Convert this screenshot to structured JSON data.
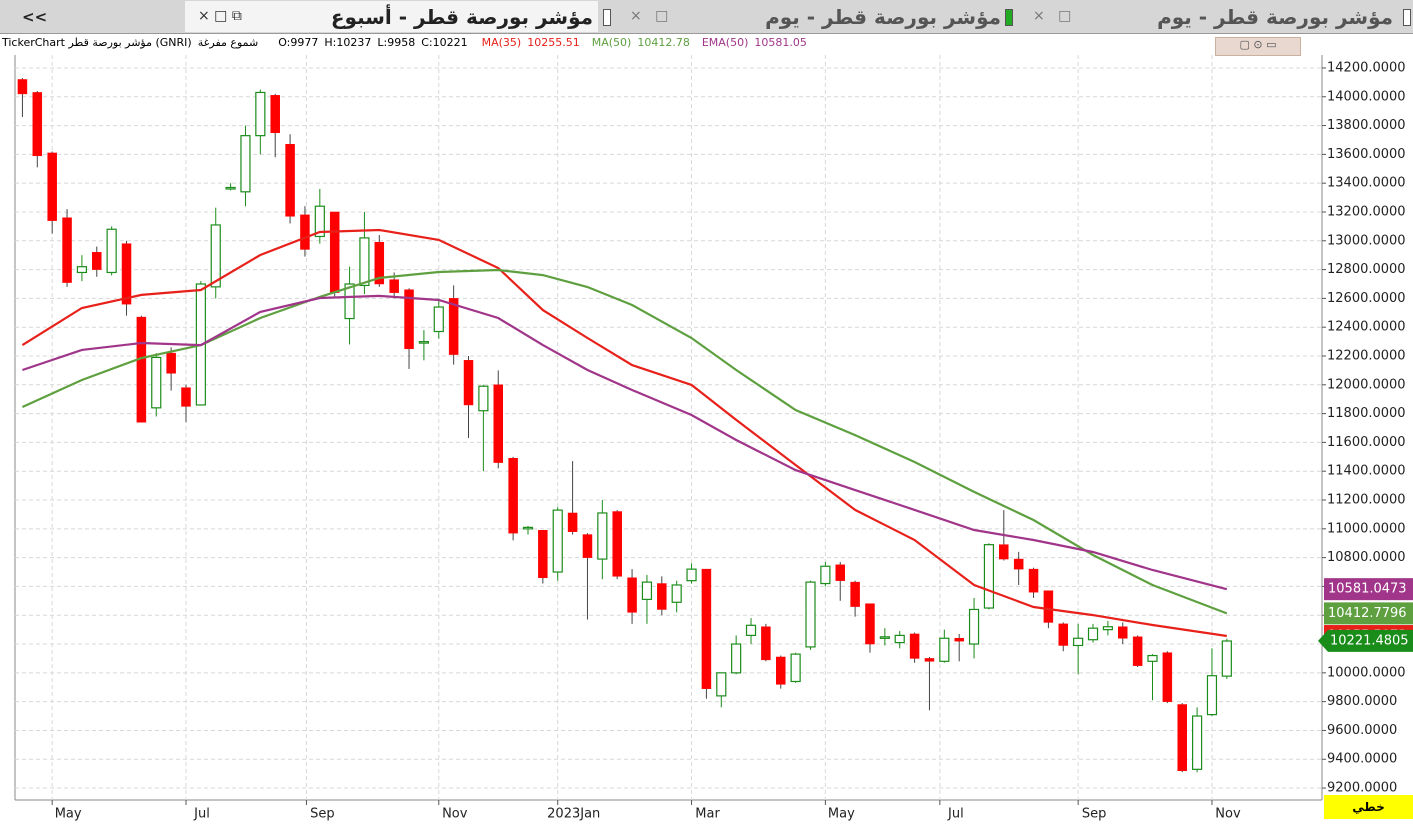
{
  "nav_button": "<<",
  "tabs": [
    "مؤشر بورصة قطر - أسبوع",
    "مؤشر بورصة قطر - يوم",
    "مؤشر بورصة قطر - يوم"
  ],
  "info_bar": {
    "source": "TickerChart مؤشر بورصة قطر (GNRI)",
    "style": "شموع مفرغة",
    "ohlc_labels": [
      "O:",
      "H:",
      "L:",
      "C:"
    ]
  },
  "chart_type_button": "خطي",
  "chart_data": {
    "type": "candlestick",
    "xlim": [
      -0.5,
      87.4
    ],
    "ylim": [
      9117,
      14290
    ],
    "grid": true,
    "up_color": "#1a8c1a",
    "down_color": "#ff0000",
    "xticks": [
      {
        "value": 2,
        "label": "May"
      },
      {
        "value": 11,
        "label": "Jul"
      },
      {
        "value": 19.1,
        "label": "Sep"
      },
      {
        "value": 28,
        "label": "Nov"
      },
      {
        "value": 36,
        "label": "2023Jan"
      },
      {
        "value": 45,
        "label": "Mar"
      },
      {
        "value": 54,
        "label": "May"
      },
      {
        "value": 61.7,
        "label": "Jul"
      },
      {
        "value": 71,
        "label": "Sep"
      },
      {
        "value": 80,
        "label": "Nov"
      }
    ],
    "yticks": [
      {
        "value": 9200,
        "label": "9200.0000"
      },
      {
        "value": 9400,
        "label": "9400.0000"
      },
      {
        "value": 9600,
        "label": "9600.0000"
      },
      {
        "value": 9800,
        "label": "9800.0000"
      },
      {
        "value": 10000,
        "label": "10000.0000"
      },
      {
        "value": 10200,
        "label": "10200.0000"
      },
      {
        "value": 10400,
        "label": "10400.0000"
      },
      {
        "value": 10600,
        "label": "10600.0000"
      },
      {
        "value": 10800,
        "label": "10800.0000"
      },
      {
        "value": 11000,
        "label": "11000.0000"
      },
      {
        "value": 11200,
        "label": "11200.0000"
      },
      {
        "value": 11400,
        "label": "11400.0000"
      },
      {
        "value": 11600,
        "label": "11600.0000"
      },
      {
        "value": 11800,
        "label": "11800.0000"
      },
      {
        "value": 12000,
        "label": "12000.0000"
      },
      {
        "value": 12200,
        "label": "12200.0000"
      },
      {
        "value": 12400,
        "label": "12400.0000"
      },
      {
        "value": 12600,
        "label": "12600.0000"
      },
      {
        "value": 12800,
        "label": "12800.0000"
      },
      {
        "value": 13000,
        "label": "13000.0000"
      },
      {
        "value": 13200,
        "label": "13200.0000"
      },
      {
        "value": 13400,
        "label": "13400.0000"
      },
      {
        "value": 13600,
        "label": "13600.0000"
      },
      {
        "value": 13800,
        "label": "13800.0000"
      },
      {
        "value": 14000,
        "label": "14000.0000"
      },
      {
        "value": 14200,
        "label": "14200.0000"
      }
    ],
    "open": [
      14120,
      14030,
      13610,
      13160,
      12780,
      12920,
      12780,
      12980,
      12470,
      11840,
      12220,
      11980,
      11860,
      12680,
      13360,
      13340,
      13730,
      14010,
      13670,
      13180,
      13030,
      13200,
      12460,
      12690,
      12990,
      12730,
      12660,
      12290,
      12370,
      12600,
      12170,
      11820,
      12000,
      11490,
      11000,
      10990,
      10700,
      11110,
      10960,
      10790,
      11120,
      10660,
      10510,
      10620,
      10490,
      10640,
      10720,
      9840,
      10000,
      10260,
      10320,
      10110,
      9940,
      10180,
      10620,
      10750,
      10630,
      10480,
      10240,
      10210,
      10270,
      10100,
      10080,
      10240,
      10200,
      10450,
      10890,
      10790,
      10720,
      10570,
      10340,
      10190,
      10230,
      10300,
      10320,
      10250,
      10080,
      10140,
      9780,
      9330,
      9710,
      9977
    ],
    "high": [
      14130,
      14040,
      13620,
      13220,
      12900,
      12960,
      13100,
      13000,
      12480,
      12220,
      12260,
      12000,
      12720,
      13230,
      13400,
      13800,
      14050,
      14020,
      13740,
      13240,
      13360,
      13200,
      12820,
      13200,
      13040,
      12780,
      12670,
      12380,
      12600,
      12690,
      12200,
      12000,
      12100,
      11500,
      11020,
      10990,
      11150,
      11470,
      10970,
      11200,
      11130,
      10720,
      10680,
      10670,
      10640,
      10760,
      10720,
      10000,
      10260,
      10380,
      10340,
      10120,
      10140,
      10640,
      10770,
      10770,
      10640,
      10480,
      10310,
      10290,
      10280,
      10110,
      10300,
      10270,
      10520,
      10900,
      11130,
      10840,
      10730,
      10570,
      10350,
      10340,
      10340,
      10360,
      10350,
      10260,
      10130,
      10150,
      9790,
      9760,
      10170,
      10237
    ],
    "low": [
      13860,
      13510,
      13050,
      12680,
      12720,
      12750,
      12760,
      12480,
      11740,
      11780,
      11960,
      11740,
      11860,
      12600,
      13350,
      13240,
      13600,
      13580,
      13120,
      12890,
      12980,
      12600,
      12280,
      12630,
      12680,
      12600,
      12110,
      12170,
      12320,
      12140,
      11630,
      11400,
      11420,
      10920,
      10960,
      10620,
      10640,
      10960,
      10370,
      10650,
      10650,
      10340,
      10340,
      10400,
      10420,
      10620,
      9820,
      9760,
      9990,
      10200,
      10080,
      9890,
      9930,
      10160,
      10600,
      10500,
      10390,
      10140,
      10190,
      10170,
      10070,
      9740,
      10070,
      10080,
      10100,
      10440,
      10780,
      10610,
      10520,
      10310,
      10150,
      9990,
      10210,
      10260,
      10200,
      10040,
      9810,
      9790,
      9310,
      9310,
      9700,
      9958
    ],
    "close": [
      14020,
      13590,
      13140,
      12710,
      12820,
      12800,
      13080,
      12560,
      11740,
      12190,
      12080,
      11850,
      12700,
      13110,
      13370,
      13730,
      14030,
      13750,
      13170,
      12940,
      13240,
      12640,
      12700,
      13020,
      12700,
      12640,
      12250,
      12300,
      12540,
      12210,
      11860,
      11990,
      11460,
      10970,
      11010,
      10660,
      11130,
      10980,
      10800,
      11110,
      10670,
      10420,
      10630,
      10440,
      10610,
      10720,
      9890,
      10000,
      10200,
      10330,
      10090,
      9920,
      10130,
      10630,
      10740,
      10640,
      10460,
      10200,
      10250,
      10260,
      10100,
      10080,
      10240,
      10220,
      10440,
      10890,
      10790,
      10720,
      10560,
      10350,
      10190,
      10240,
      10310,
      10320,
      10240,
      10050,
      10120,
      9800,
      9320,
      9700,
      9980,
      10221
    ],
    "last_price_tag": 10221.4805,
    "series": [
      {
        "name": "MA(35)",
        "color": "#e8201a",
        "tag": 10255.5073,
        "x": [
          0,
          4,
          8,
          12,
          16,
          20,
          24,
          28,
          32,
          35,
          38,
          41,
          45,
          48,
          52,
          56,
          60,
          64,
          68,
          72,
          76,
          81
        ],
        "values": [
          12276,
          12533,
          12624,
          12658,
          12901,
          13061,
          13075,
          13006,
          12811,
          12519,
          12325,
          12137,
          11999,
          11756,
          11443,
          11131,
          10922,
          10610,
          10457,
          10401,
          10332,
          10255.51
        ]
      },
      {
        "name": "MA(50)",
        "color": "#5ea040",
        "tag": 10412.7796,
        "x": [
          0,
          4,
          8,
          12,
          16,
          20,
          24,
          28,
          32,
          35,
          38,
          41,
          45,
          48,
          52,
          56,
          60,
          64,
          68,
          72,
          76,
          81
        ],
        "values": [
          11846,
          12033,
          12186,
          12276,
          12464,
          12610,
          12742,
          12783,
          12797,
          12762,
          12679,
          12554,
          12325,
          12103,
          11825,
          11651,
          11464,
          11256,
          11061,
          10818,
          10610,
          10412.78
        ]
      },
      {
        "name": "EMA(50)",
        "color": "#a0358a",
        "tag": 10581.0473,
        "x": [
          0,
          4,
          8,
          12,
          16,
          20,
          24,
          28,
          32,
          35,
          38,
          41,
          45,
          48,
          52,
          56,
          60,
          64,
          68,
          72,
          76,
          81
        ],
        "values": [
          12103,
          12242,
          12290,
          12276,
          12506,
          12603,
          12617,
          12589,
          12464,
          12276,
          12103,
          11964,
          11790,
          11617,
          11408,
          11269,
          11131,
          10992,
          10922,
          10839,
          10714,
          10581.05
        ]
      }
    ]
  }
}
